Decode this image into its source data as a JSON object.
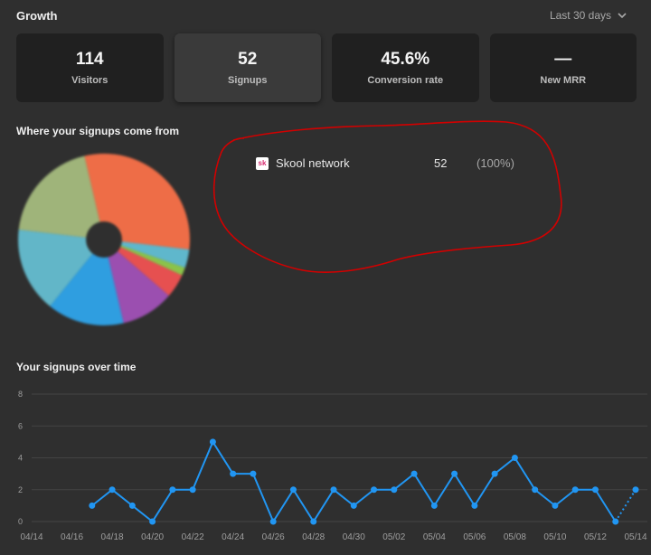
{
  "header": {
    "title": "Growth",
    "range_label": "Last 30 days",
    "chevron": "chevron-down-icon"
  },
  "cards": [
    {
      "value": "114",
      "label": "Visitors",
      "active": false
    },
    {
      "value": "52",
      "label": "Signups",
      "active": true
    },
    {
      "value": "45.6%",
      "label": "Conversion rate",
      "active": false
    },
    {
      "value": "—",
      "label": "New MRR",
      "active": false
    }
  ],
  "sources": {
    "title": "Where your signups come from",
    "items": [
      {
        "icon_text": "sk",
        "name": "Skool network",
        "count": "52",
        "percent": "(100%)"
      }
    ]
  },
  "pie_colors": [
    "#ee6d47",
    "#5fb7cc",
    "#8bc34a",
    "#e65050",
    "#9b4fb0",
    "#2f9ee0",
    "#62b6c8",
    "#9fb47a"
  ],
  "timeline": {
    "title": "Your signups over time",
    "chart_data": {
      "type": "line",
      "x": [
        "04/14",
        "04/15",
        "04/16",
        "04/17",
        "04/18",
        "04/19",
        "04/20",
        "04/21",
        "04/22",
        "04/23",
        "04/24",
        "04/25",
        "04/26",
        "04/27",
        "04/28",
        "04/29",
        "04/30",
        "05/01",
        "05/02",
        "05/03",
        "05/04",
        "05/05",
        "05/06",
        "05/07",
        "05/08",
        "05/09",
        "05/10",
        "05/11",
        "05/12",
        "05/13",
        "05/14"
      ],
      "tick_labels": [
        "04/14",
        "04/16",
        "04/18",
        "04/20",
        "04/22",
        "04/24",
        "04/26",
        "04/28",
        "04/30",
        "05/02",
        "05/04",
        "05/06",
        "05/08",
        "05/10",
        "05/12",
        "05/14"
      ],
      "series": [
        {
          "values": [
            null,
            null,
            null,
            1,
            2,
            1,
            0,
            2,
            2,
            5,
            3,
            3,
            0,
            2,
            0,
            2,
            1,
            2,
            2,
            3,
            1,
            3,
            1,
            3,
            4,
            2,
            1,
            2,
            2,
            0,
            2
          ],
          "color": "#2196f3"
        }
      ],
      "yticks": [
        0,
        2,
        4,
        6,
        8
      ],
      "ylim": [
        0,
        8
      ],
      "grid": true,
      "last_segment_dotted": true
    }
  },
  "annotation_color": "#d20000"
}
